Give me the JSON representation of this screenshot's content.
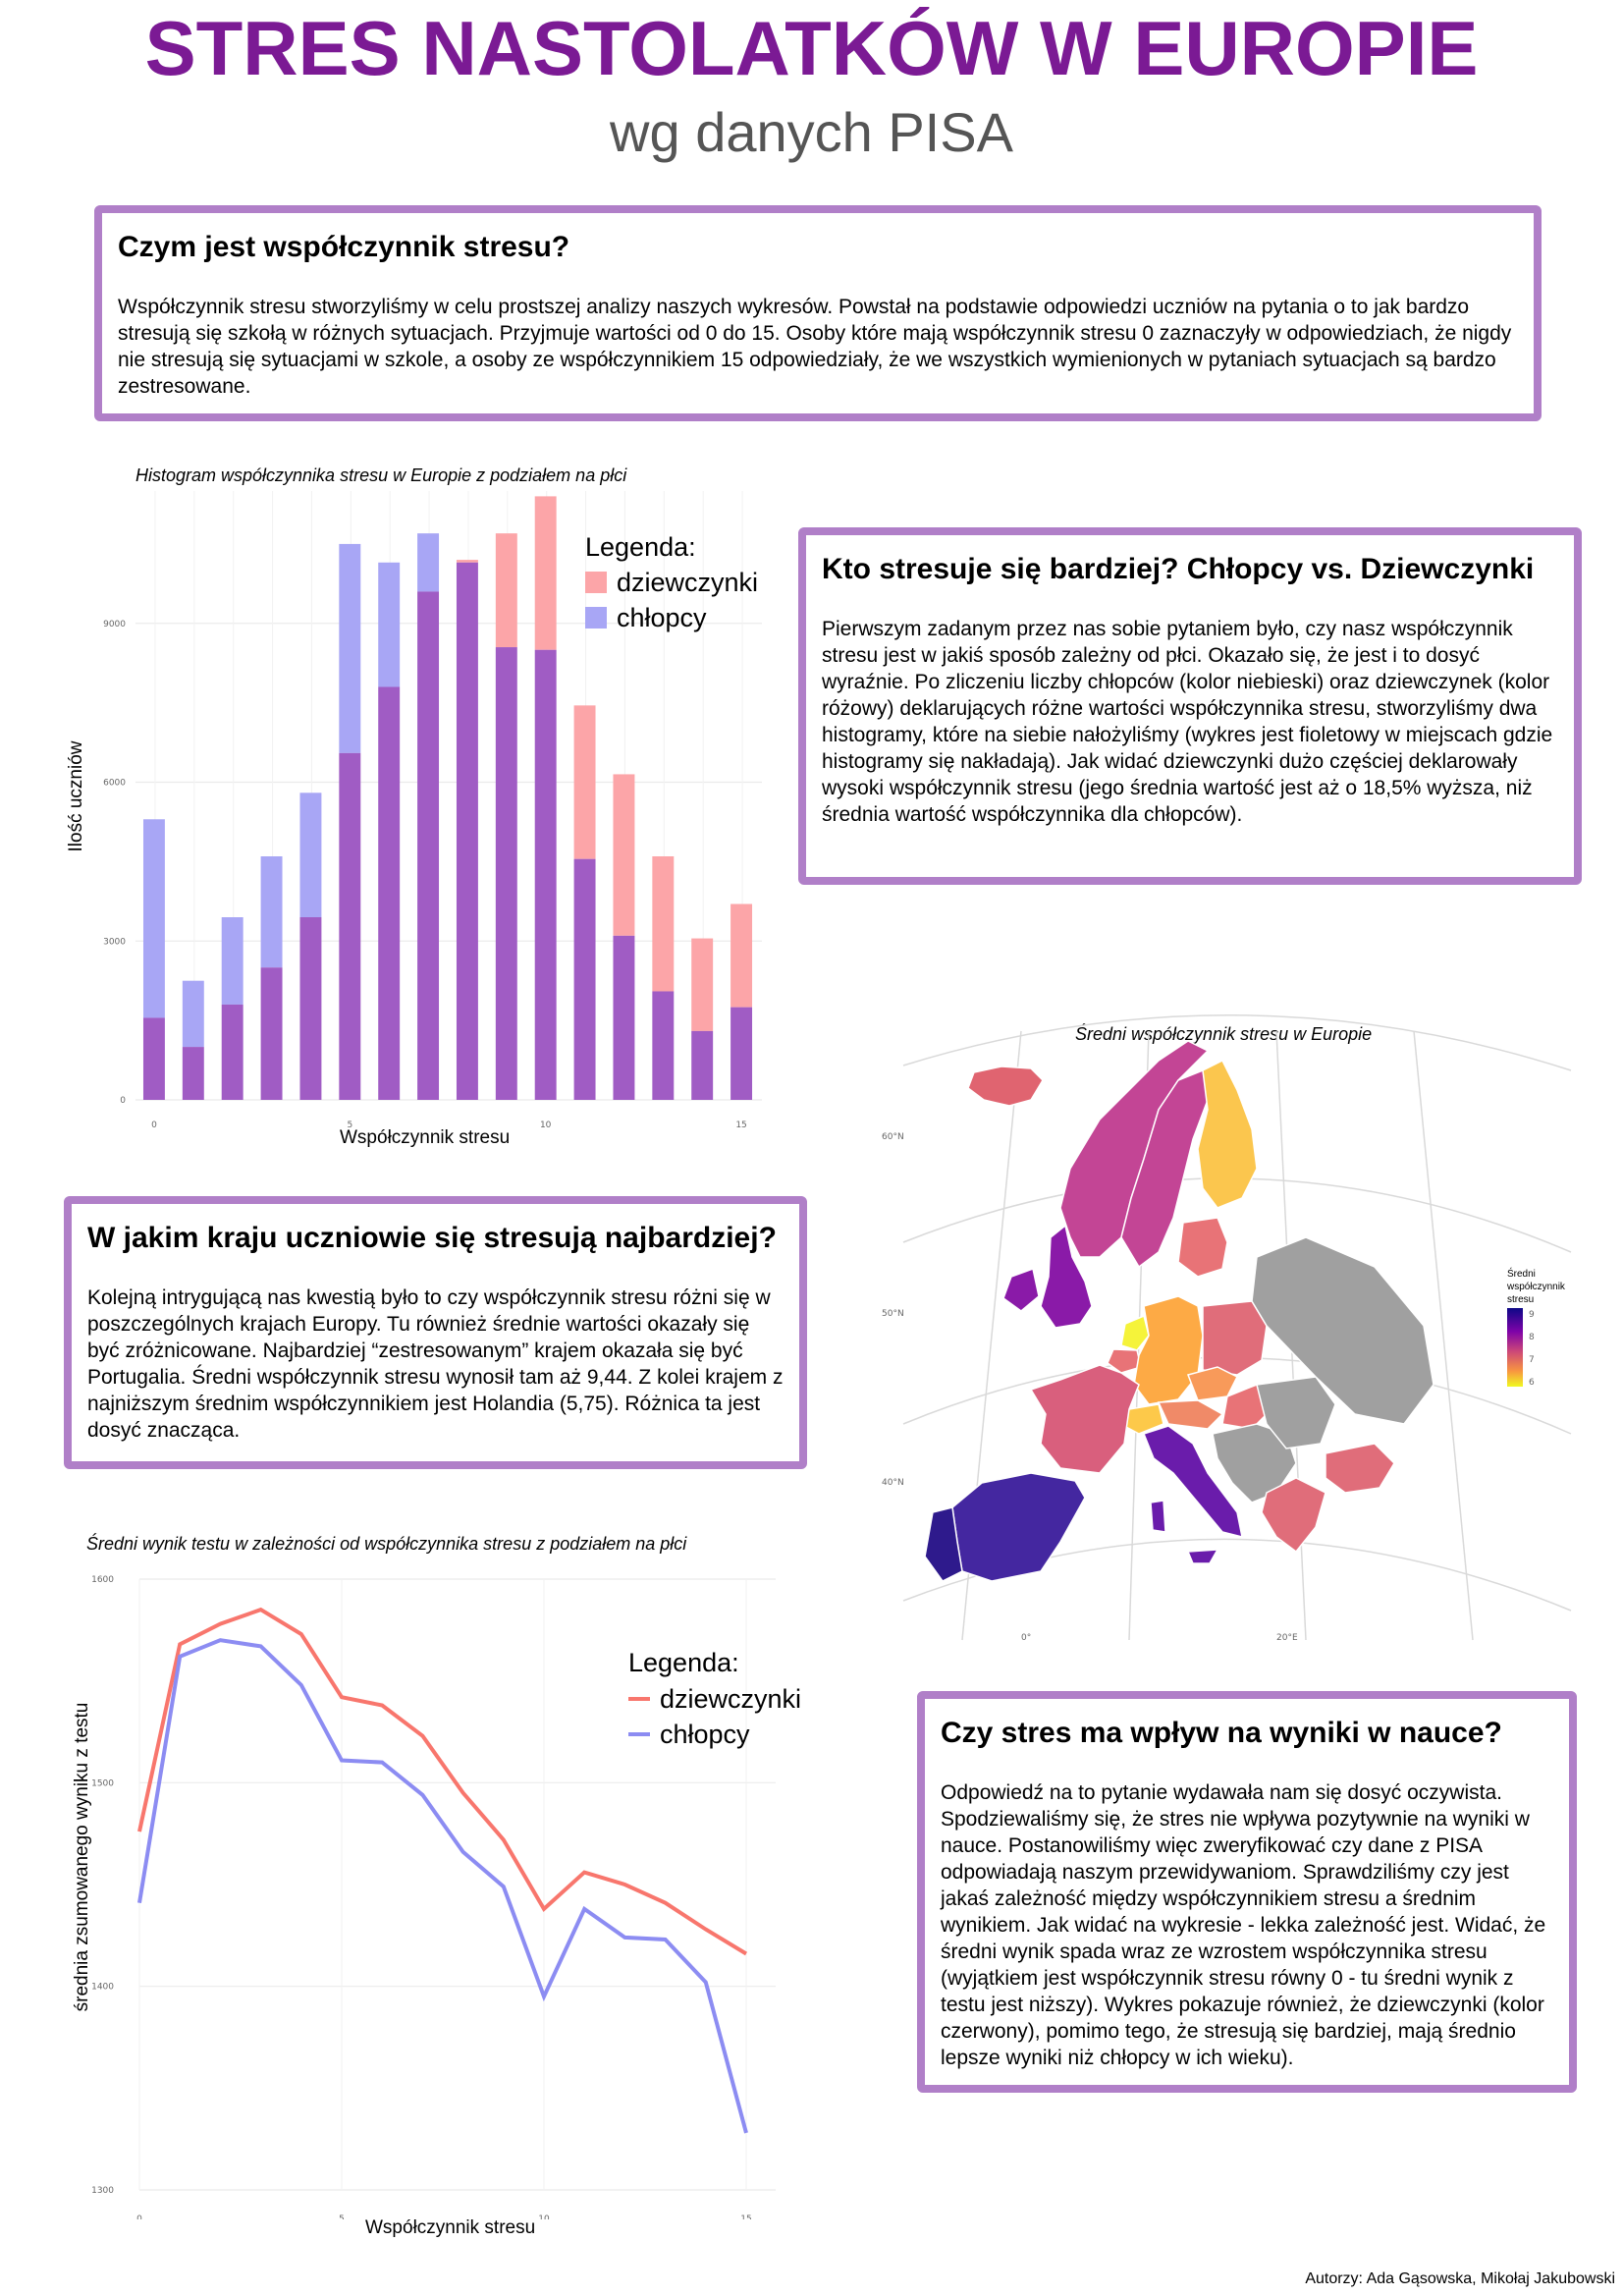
{
  "header": {
    "title": "STRES NASTOLATKÓW W EUROPIE",
    "subtitle": "wg danych PISA"
  },
  "box1": {
    "heading": "Czym jest współczynnik stresu?",
    "body": "Współczynnik stresu stworzyliśmy w celu prostszej analizy naszych wykresów. Powstał na podstawie odpowiedzi uczniów na pytania o to jak bardzo stresują się szkołą w różnych sytuacjach. Przyjmuje wartości od 0 do 15. Osoby które mają współczynnik stresu 0 zaznaczyły w odpowiedziach, że nigdy nie stresują się sytuacjami w szkole, a osoby ze współczynnikiem 15 odpowiedziały, że we wszystkich wymienionych w pytaniach sytuacjach są bardzo zestresowane."
  },
  "box2": {
    "heading": "Kto stresuje się bardziej? Chłopcy vs. Dziewczynki",
    "body": "Pierwszym zadanym przez nas sobie pytaniem było, czy nasz współczynnik stresu jest w jakiś sposób zależny od płci. Okazało się, że jest i to dosyć wyraźnie. Po zliczeniu liczby chłopców (kolor niebieski)  oraz dziewczynek (kolor różowy) deklarujących różne wartości współczynnika stresu, stworzyliśmy dwa histogramy, które na siebie nałożyliśmy (wykres jest fioletowy w miejscach gdzie histogramy się nakładają). Jak widać dziewczynki dużo częściej deklarowały wysoki współczynnik stresu (jego średnia wartość jest aż o 18,5% wyższa, niż średnia wartość współczynnika dla chłopców)."
  },
  "box3": {
    "heading": "W jakim kraju uczniowie się stresują najbardziej?",
    "body": "Kolejną intrygującą nas kwestią było to czy współczynnik stresu różni się w poszczególnych krajach Europy. Tu również średnie wartości okazały się być zróżnicowane. Najbardziej “zestresowanym” krajem okazała się być Portugalia. Średni współczynnik stresu wynosił tam aż 9,44. Z kolei krajem z najniższym średnim współczynnikiem jest Holandia (5,75). Różnica ta jest dosyć znacząca."
  },
  "box4": {
    "heading": "Czy stres ma wpływ na wyniki w nauce?",
    "body": "Odpowiedź na to pytanie wydawała nam się dosyć oczywista. Spodziewaliśmy się, że stres nie wpływa pozytywnie na wyniki w nauce.  Postanowiliśmy więc zweryfikować czy dane z PISA odpowiadają naszym przewidywaniom. Sprawdziliśmy czy jest jakaś zależność między współczynnikiem stresu a średnim wynikiem. Jak widać na wykresie - lekka zależność  jest. Widać, że średni wynik spada wraz ze wzrostem współczynnika stresu (wyjątkiem jest współczynnik stresu równy 0 -  tu średni wynik z testu jest niższy). Wykres pokazuje również, że dziewczynki (kolor czerwony), pomimo tego, że stresują się bardziej, mają średnio lepsze wyniki niż chłopcy w ich wieku)."
  },
  "chart_data": [
    {
      "type": "bar",
      "title": "Histogram współczynnika stresu w Europie z podziałem na płci",
      "xlabel": "Współczynnik stresu",
      "ylabel": "Ilość uczniów",
      "legend_title": "Legenda:",
      "legend_position": "top-right",
      "categories": [
        0,
        1,
        2,
        3,
        4,
        5,
        6,
        7,
        8,
        9,
        10,
        11,
        12,
        13,
        14,
        15
      ],
      "x_ticks": [
        "0",
        "5",
        "10",
        "15"
      ],
      "y_ticks": [
        "0",
        "3000",
        "6000",
        "9000"
      ],
      "ylim": [
        0,
        11500
      ],
      "grid": true,
      "series": [
        {
          "name": "dziewczynki",
          "color": "#f8766d",
          "values": [
            1550,
            1000,
            1800,
            2500,
            3450,
            6550,
            7800,
            9600,
            10200,
            10700,
            11400,
            7450,
            6150,
            4600,
            3050,
            3700
          ]
        },
        {
          "name": "chłopcy",
          "color": "#8c8cf2",
          "values": [
            5300,
            2250,
            3450,
            4600,
            5800,
            10500,
            10150,
            10700,
            10150,
            8550,
            8500,
            4550,
            3100,
            2050,
            1300,
            1750
          ]
        }
      ]
    },
    {
      "type": "map",
      "title": "Średni współczynnik stresu w Europie",
      "legend_title": "Średni współczynnik stresu",
      "legend_ticks": [
        "9",
        "8",
        "7",
        "6"
      ],
      "scale_range": [
        5.75,
        9.44
      ],
      "lat_labels": [
        "60°N",
        "50°N",
        "40°N"
      ],
      "lon_labels": [
        "0°",
        "20°E"
      ]
    },
    {
      "type": "line",
      "title": "Średni wynik testu w zależności od współczynnika stresu z podziałem na płci",
      "xlabel": "Współczynnik stresu",
      "ylabel": "średnia zsumowanego wyniku z testu",
      "legend_title": "Legenda:",
      "legend_position": "top-right",
      "x": [
        0,
        1,
        2,
        3,
        4,
        5,
        6,
        7,
        8,
        9,
        10,
        11,
        12,
        13,
        14,
        15
      ],
      "x_ticks": [
        "0",
        "5",
        "10",
        "15"
      ],
      "y_ticks": [
        "1300",
        "1400",
        "1500",
        "1600"
      ],
      "ylim": [
        1300,
        1600
      ],
      "grid": true,
      "series": [
        {
          "name": "dziewczynki",
          "color": "#f8766d",
          "values": [
            1476,
            1568,
            1578,
            1585,
            1573,
            1542,
            1538,
            1523,
            1495,
            1472,
            1438,
            1456,
            1450,
            1441,
            1428,
            1416
          ]
        },
        {
          "name": "chłopcy",
          "color": "#8c8cf2",
          "values": [
            1441,
            1562,
            1570,
            1567,
            1548,
            1511,
            1510,
            1494,
            1466,
            1449,
            1395,
            1438,
            1424,
            1423,
            1402,
            1328
          ]
        }
      ]
    }
  ],
  "footer": {
    "authors": "Autorzy: Ada Gąsowska, Mikołaj Jakubowski"
  }
}
